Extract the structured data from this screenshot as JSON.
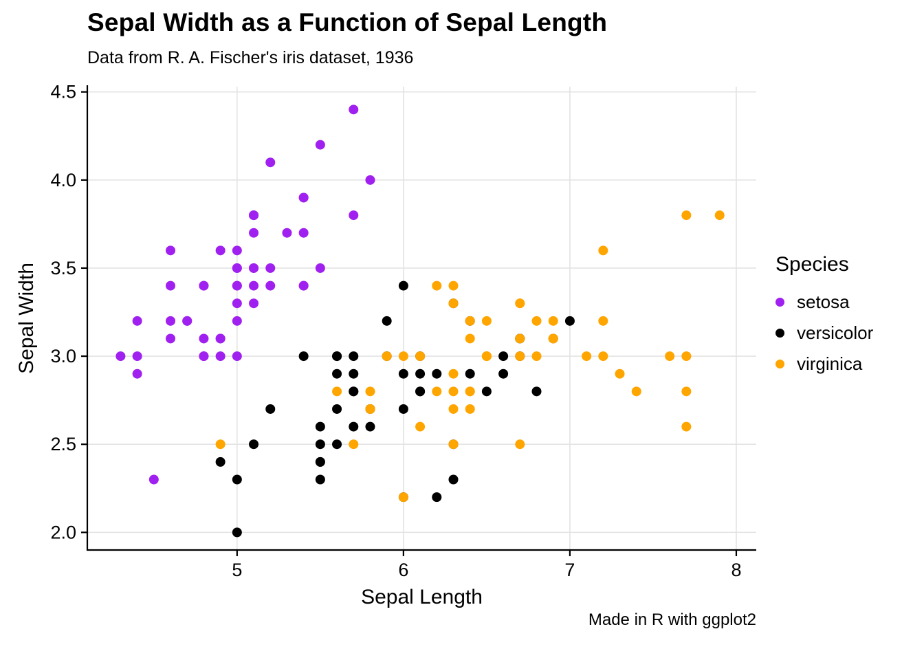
{
  "title": "Sepal Width as a Function of Sepal Length",
  "subtitle": "Data from R. A. Fischer's iris dataset, 1936",
  "caption": "Made in R with ggplot2",
  "legend": {
    "title": "Species",
    "items": [
      {
        "label": "setosa",
        "color": "#A020F0"
      },
      {
        "label": "versicolor",
        "color": "#000000"
      },
      {
        "label": "virginica",
        "color": "#FFA500"
      }
    ]
  },
  "chart_data": {
    "type": "scatter",
    "title": "Sepal Width as a Function of Sepal Length",
    "subtitle": "Data from R. A. Fischer's iris dataset, 1936",
    "xlabel": "Sepal Length",
    "ylabel": "Sepal Width",
    "xlim": [
      4.1,
      8.12
    ],
    "ylim": [
      1.9,
      4.53
    ],
    "x_ticks": [
      {
        "v": 5,
        "label": "5"
      },
      {
        "v": 6,
        "label": "6"
      },
      {
        "v": 7,
        "label": "7"
      },
      {
        "v": 8,
        "label": "8"
      }
    ],
    "y_ticks": [
      {
        "v": 2.0,
        "label": "2.0"
      },
      {
        "v": 2.5,
        "label": "2.5"
      },
      {
        "v": 3.0,
        "label": "3.0"
      },
      {
        "v": 3.5,
        "label": "3.5"
      },
      {
        "v": 4.0,
        "label": "4.0"
      },
      {
        "v": 4.5,
        "label": "4.5"
      }
    ],
    "grid": true,
    "grid_color": "#E3E3E3",
    "axis_color": "#000000",
    "point_radius": 7,
    "legend_position": "right",
    "series": [
      {
        "name": "setosa",
        "color": "#A020F0",
        "points": [
          [
            5.1,
            3.5
          ],
          [
            4.9,
            3.0
          ],
          [
            4.7,
            3.2
          ],
          [
            4.6,
            3.1
          ],
          [
            5.0,
            3.6
          ],
          [
            5.4,
            3.9
          ],
          [
            4.6,
            3.4
          ],
          [
            5.0,
            3.4
          ],
          [
            4.4,
            2.9
          ],
          [
            4.9,
            3.1
          ],
          [
            5.4,
            3.7
          ],
          [
            4.8,
            3.4
          ],
          [
            4.8,
            3.0
          ],
          [
            4.3,
            3.0
          ],
          [
            5.8,
            4.0
          ],
          [
            5.7,
            4.4
          ],
          [
            5.4,
            3.9
          ],
          [
            5.1,
            3.5
          ],
          [
            5.7,
            3.8
          ],
          [
            5.1,
            3.8
          ],
          [
            5.4,
            3.4
          ],
          [
            5.1,
            3.7
          ],
          [
            4.6,
            3.6
          ],
          [
            5.1,
            3.3
          ],
          [
            4.8,
            3.4
          ],
          [
            5.0,
            3.0
          ],
          [
            5.0,
            3.4
          ],
          [
            5.2,
            3.5
          ],
          [
            5.2,
            3.4
          ],
          [
            4.7,
            3.2
          ],
          [
            4.8,
            3.1
          ],
          [
            5.4,
            3.4
          ],
          [
            5.2,
            4.1
          ],
          [
            5.5,
            4.2
          ],
          [
            4.9,
            3.1
          ],
          [
            5.0,
            3.2
          ],
          [
            5.5,
            3.5
          ],
          [
            4.9,
            3.6
          ],
          [
            4.4,
            3.0
          ],
          [
            5.1,
            3.4
          ],
          [
            5.0,
            3.5
          ],
          [
            4.5,
            2.3
          ],
          [
            4.4,
            3.2
          ],
          [
            5.0,
            3.5
          ],
          [
            5.1,
            3.8
          ],
          [
            4.8,
            3.0
          ],
          [
            5.1,
            3.8
          ],
          [
            4.6,
            3.2
          ],
          [
            5.3,
            3.7
          ],
          [
            5.0,
            3.3
          ]
        ]
      },
      {
        "name": "versicolor",
        "color": "#000000",
        "points": [
          [
            7.0,
            3.2
          ],
          [
            6.4,
            3.2
          ],
          [
            6.9,
            3.1
          ],
          [
            5.5,
            2.3
          ],
          [
            6.5,
            2.8
          ],
          [
            5.7,
            2.8
          ],
          [
            6.3,
            3.3
          ],
          [
            4.9,
            2.4
          ],
          [
            6.6,
            2.9
          ],
          [
            5.2,
            2.7
          ],
          [
            5.0,
            2.0
          ],
          [
            5.9,
            3.0
          ],
          [
            6.0,
            2.2
          ],
          [
            6.1,
            2.9
          ],
          [
            5.6,
            2.9
          ],
          [
            6.7,
            3.1
          ],
          [
            5.6,
            3.0
          ],
          [
            5.8,
            2.7
          ],
          [
            6.2,
            2.2
          ],
          [
            5.6,
            2.5
          ],
          [
            5.9,
            3.2
          ],
          [
            6.1,
            2.8
          ],
          [
            6.3,
            2.5
          ],
          [
            6.1,
            2.8
          ],
          [
            6.4,
            2.9
          ],
          [
            6.6,
            3.0
          ],
          [
            6.8,
            2.8
          ],
          [
            6.7,
            3.0
          ],
          [
            6.0,
            2.9
          ],
          [
            5.7,
            2.6
          ],
          [
            5.5,
            2.4
          ],
          [
            5.5,
            2.4
          ],
          [
            5.8,
            2.7
          ],
          [
            6.0,
            2.7
          ],
          [
            5.4,
            3.0
          ],
          [
            6.0,
            3.4
          ],
          [
            6.7,
            3.1
          ],
          [
            6.3,
            2.3
          ],
          [
            5.6,
            3.0
          ],
          [
            5.5,
            2.5
          ],
          [
            5.5,
            2.6
          ],
          [
            6.1,
            3.0
          ],
          [
            5.8,
            2.6
          ],
          [
            5.0,
            2.3
          ],
          [
            5.6,
            2.7
          ],
          [
            5.7,
            3.0
          ],
          [
            5.7,
            2.9
          ],
          [
            6.2,
            2.9
          ],
          [
            5.1,
            2.5
          ],
          [
            5.7,
            2.8
          ]
        ]
      },
      {
        "name": "virginica",
        "color": "#FFA500",
        "points": [
          [
            6.3,
            3.3
          ],
          [
            5.8,
            2.7
          ],
          [
            7.1,
            3.0
          ],
          [
            6.3,
            2.9
          ],
          [
            6.5,
            3.0
          ],
          [
            7.6,
            3.0
          ],
          [
            4.9,
            2.5
          ],
          [
            7.3,
            2.9
          ],
          [
            6.7,
            2.5
          ],
          [
            7.2,
            3.6
          ],
          [
            6.5,
            3.2
          ],
          [
            6.4,
            2.7
          ],
          [
            6.8,
            3.0
          ],
          [
            5.7,
            2.5
          ],
          [
            5.8,
            2.8
          ],
          [
            6.4,
            3.2
          ],
          [
            6.5,
            3.0
          ],
          [
            7.7,
            3.8
          ],
          [
            7.7,
            2.6
          ],
          [
            6.0,
            2.2
          ],
          [
            6.9,
            3.2
          ],
          [
            5.6,
            2.8
          ],
          [
            7.7,
            2.8
          ],
          [
            6.3,
            2.7
          ],
          [
            6.7,
            3.3
          ],
          [
            7.2,
            3.2
          ],
          [
            6.2,
            2.8
          ],
          [
            6.1,
            3.0
          ],
          [
            6.4,
            2.8
          ],
          [
            7.2,
            3.0
          ],
          [
            7.4,
            2.8
          ],
          [
            7.9,
            3.8
          ],
          [
            6.4,
            2.8
          ],
          [
            6.3,
            2.8
          ],
          [
            6.1,
            2.6
          ],
          [
            7.7,
            3.0
          ],
          [
            6.3,
            3.4
          ],
          [
            6.4,
            3.1
          ],
          [
            6.0,
            3.0
          ],
          [
            6.9,
            3.1
          ],
          [
            6.7,
            3.1
          ],
          [
            6.9,
            3.1
          ],
          [
            5.8,
            2.7
          ],
          [
            6.8,
            3.2
          ],
          [
            6.7,
            3.3
          ],
          [
            6.7,
            3.0
          ],
          [
            6.3,
            2.5
          ],
          [
            6.5,
            3.0
          ],
          [
            6.2,
            3.4
          ],
          [
            5.9,
            3.0
          ]
        ]
      }
    ]
  }
}
